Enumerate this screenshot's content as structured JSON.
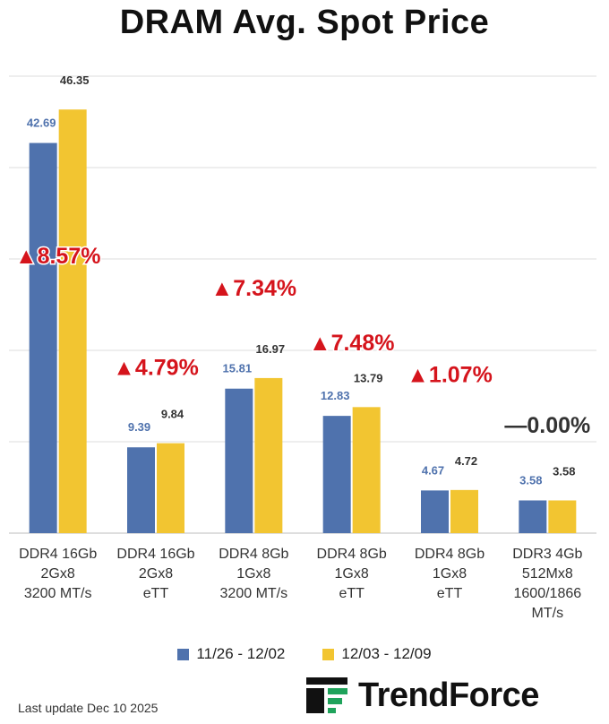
{
  "chart_data": {
    "type": "bar",
    "title": "DRAM Avg. Spot Price",
    "categories": [
      [
        "DDR4 16Gb",
        "2Gx8",
        "3200 MT/s"
      ],
      [
        "DDR4 16Gb",
        "2Gx8",
        "eTT"
      ],
      [
        "DDR4 8Gb",
        "1Gx8",
        "3200 MT/s"
      ],
      [
        "DDR4 8Gb",
        "1Gx8",
        "eTT"
      ],
      [
        "DDR4 8Gb",
        "1Gx8",
        "eTT"
      ],
      [
        "DDR3 4Gb",
        "512Mx8",
        "1600/1866",
        "MT/s"
      ]
    ],
    "series": [
      {
        "name": "11/26 - 12/02",
        "values": [
          42.69,
          9.39,
          15.81,
          12.83,
          4.67,
          3.58
        ],
        "color": "#4f72ad",
        "label_color": "#4f72ad"
      },
      {
        "name": "12/03 - 12/09",
        "values": [
          46.35,
          9.84,
          16.97,
          13.79,
          4.72,
          3.58
        ],
        "color": "#f2c531",
        "label_color": "#333333"
      }
    ],
    "value_labels": [
      [
        "42.69",
        "9.39",
        "15.81",
        "12.83",
        "4.67",
        "3.58"
      ],
      [
        "46.35",
        "9.84",
        "16.97",
        "13.79",
        "4.72",
        "3.58"
      ]
    ],
    "changes": [
      {
        "label": "▲8.57%",
        "color": "#d5141c"
      },
      {
        "label": "▲4.79%",
        "color": "#d5141c"
      },
      {
        "label": "▲7.34%",
        "color": "#d5141c"
      },
      {
        "label": "▲7.48%",
        "color": "#d5141c"
      },
      {
        "label": "▲1.07%",
        "color": "#d5141c"
      },
      {
        "label": "—0.00%",
        "color": "#333333"
      }
    ],
    "ylim": [
      0,
      50
    ],
    "grid": true,
    "legend_position": "bottom"
  },
  "footer": {
    "last_update": "Last update Dec 10 2025",
    "brand": "TrendForce"
  }
}
